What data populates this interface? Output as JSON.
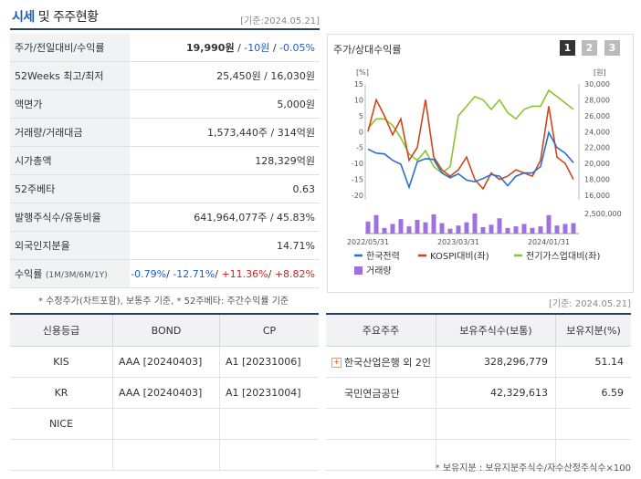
{
  "header": {
    "title_a": "시세",
    "title_b": " 및 주주현황",
    "date": "[기준:2024.05.21]"
  },
  "summary": [
    {
      "label": "주가/전일대비/수익률"
    },
    {
      "label": "52Weeks 최고/최저",
      "value": "25,450원 / 16,030원"
    },
    {
      "label": "액면가",
      "value": "5,000원"
    },
    {
      "label": "거래량/거래대금",
      "value": "1,573,440주 / 314억원"
    },
    {
      "label": "시가총액",
      "value": "128,329억원"
    },
    {
      "label": "52주베타",
      "value": "0.63"
    },
    {
      "label": "발행주식수/유동비율",
      "value": "641,964,077주 / 45.83%"
    },
    {
      "label": "외국인지분율",
      "value": "14.71%"
    },
    {
      "label": "수익률"
    }
  ],
  "price": {
    "close": "19,990원",
    "sep1": " / ",
    "change": "-10원",
    "sep2": " / ",
    "rate": "-0.05%"
  },
  "returns": {
    "label_sub": "(1M/3M/6M/1Y)",
    "r1": "-0.79%",
    "s1": "/ ",
    "r2": "-12.71%",
    "s2": "/ ",
    "r3": "+11.36%",
    "s3": "/ ",
    "r4": "+8.82%"
  },
  "note1": "* 수정주가(차트포함), 보통주 기준, * 52주베타: 주간수익률 기준",
  "chart": {
    "title": "주가/상대수익률",
    "pages": [
      "1",
      "2",
      "3"
    ],
    "left_unit": "[%]",
    "right_unit": "[원]",
    "left_ticks": [
      "15",
      "10",
      "5",
      "0",
      "-5",
      "-10",
      "-15",
      "-20"
    ],
    "right_ticks": [
      "30,000",
      "28,000",
      "26,000",
      "24,000",
      "22,000",
      "20,000",
      "18,000",
      "16,000"
    ],
    "volume_tick": "2,500,000",
    "x_labels": [
      "2022/05/31",
      "2023/03/31",
      "2024/01/31"
    ],
    "legend": [
      {
        "name": "한국전력",
        "color": "#2a6fd0"
      },
      {
        "name": "KOSPI대비(좌)",
        "color": "#d0461b"
      },
      {
        "name": "전기가스업대비(좌)",
        "color": "#8ac52a"
      },
      {
        "name": "거래량",
        "color": "#a070e0"
      }
    ]
  },
  "chart_data": {
    "type": "line",
    "x_labels": [
      "2022/05/31",
      "2023/03/31",
      "2024/01/31"
    ],
    "left_axis": {
      "unit": "%",
      "ylim": [
        -20,
        15
      ]
    },
    "right_axis": {
      "unit": "원",
      "ylim": [
        16000,
        30000
      ]
    },
    "series": [
      {
        "name": "한국전력",
        "axis": "right",
        "values": [
          21800,
          21300,
          21200,
          20400,
          19900,
          17000,
          20200,
          20600,
          20500,
          18800,
          18200,
          18700,
          17900,
          17700,
          18100,
          18600,
          18400,
          17200,
          18400,
          18800,
          18800,
          19600,
          23900,
          22000,
          21300,
          20100
        ]
      },
      {
        "name": "KOSPI대비(좌)",
        "axis": "left",
        "values": [
          0,
          10,
          5,
          -1,
          4,
          -9,
          -5,
          10,
          -8,
          -12,
          -14,
          -12,
          -8,
          -15,
          -18,
          -13,
          -15,
          -14,
          -12,
          -13,
          -14,
          -9,
          8,
          -8,
          -10,
          -15
        ]
      },
      {
        "name": "전기가스업대비(좌)",
        "axis": "left",
        "values": [
          1,
          4,
          4,
          2,
          -2,
          -7,
          -9,
          -6,
          -11,
          -13,
          -11,
          5,
          8,
          11,
          10,
          7,
          10,
          6,
          4,
          7,
          8,
          8,
          13,
          11,
          9,
          7
        ]
      },
      {
        "name": "거래량",
        "axis": "right2",
        "values": [
          1500000,
          2300000,
          700000,
          1200000,
          1800000,
          900000,
          1700000,
          1400000,
          2400000,
          1300000,
          600000,
          1000000,
          1400000,
          2500000,
          800000,
          1100000,
          1900000,
          700000,
          900000,
          1200000,
          700000,
          900000,
          2300000,
          1000000,
          1200000,
          1300000
        ]
      }
    ]
  },
  "date2": "[기준: 2024.05.21]",
  "credit": {
    "headers": [
      "신용등급",
      "BOND",
      "CP"
    ],
    "rows": [
      [
        "KIS",
        "AAA  [20240403]",
        "A1  [20231006]"
      ],
      [
        "KR",
        "AAA  [20240403]",
        "A1  [20231004]"
      ],
      [
        "NICE",
        "",
        ""
      ],
      [
        "",
        "",
        ""
      ]
    ]
  },
  "holders": {
    "headers": [
      "주요주주",
      "보유주식수(보통)",
      "보유지분(%)"
    ],
    "rows": [
      [
        "한국산업은행 외 2인",
        "328,296,779",
        "51.14"
      ],
      [
        "국민연금공단",
        "42,329,613",
        "6.59"
      ],
      [
        "",
        "",
        ""
      ],
      [
        "",
        "",
        ""
      ]
    ]
  },
  "note2": "* 보유지분 : 보유지분주식수/자수산정주식수×100"
}
